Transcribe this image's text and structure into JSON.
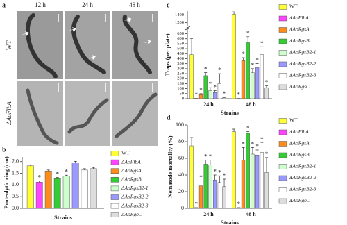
{
  "panel_a": {
    "letter": "a",
    "columns": [
      "12 h",
      "24 h",
      "48 h"
    ],
    "rows": [
      "WT",
      "ΔAoFlbA"
    ]
  },
  "chart_data": [
    {
      "type": "bar",
      "letter": "b",
      "ylabel": "Proteolytic ring (cm)",
      "xlabel": "Strains",
      "categories": [
        null
      ],
      "ylim": [
        0,
        2.2
      ],
      "yticks": [
        {
          "value": 0,
          "label": "0.0"
        },
        {
          "value": 0.5,
          "label": "0.5"
        },
        {
          "value": 1,
          "label": "1.0"
        },
        1.5,
        {
          "value": 2,
          "label": "2.0"
        }
      ],
      "series": [
        {
          "name": "WT",
          "color": "#ffff33",
          "values": [
            1.82
          ],
          "errors": [
            0.04
          ],
          "significance": [
            null
          ]
        },
        {
          "name": "ΔAoFlbA",
          "color": "#ff44ff",
          "values": [
            1.12
          ],
          "errors": [
            0.05
          ],
          "significance": [
            "*"
          ]
        },
        {
          "name": "ΔAoRgsA",
          "color": "#ff8c1a",
          "values": [
            1.6
          ],
          "errors": [
            0.04
          ],
          "significance": [
            null
          ]
        },
        {
          "name": "ΔAoRgsB",
          "color": "#33cc33",
          "values": [
            1.27
          ],
          "errors": [
            0.05
          ],
          "significance": [
            "*"
          ]
        },
        {
          "name": "ΔAoRgsB2-1",
          "color": "#ccffcc",
          "values": [
            1.38
          ],
          "errors": [
            0.04
          ],
          "significance": [
            "*"
          ]
        },
        {
          "name": "ΔAoRgsB2-2",
          "color": "#9999ff",
          "values": [
            1.95
          ],
          "errors": [
            0.06
          ],
          "significance": [
            null
          ]
        },
        {
          "name": "ΔAoRgsB2-3",
          "color": "#ffffff",
          "values": [
            1.64
          ],
          "errors": [
            0.06
          ],
          "significance": [
            null
          ]
        },
        {
          "name": "ΔAoRgsC",
          "color": "#dddddd",
          "values": [
            1.7
          ],
          "errors": [
            0.05
          ],
          "significance": [
            null
          ]
        }
      ]
    },
    {
      "type": "bar",
      "letter": "c",
      "ylabel": "Traps (per plate)",
      "xlabel": "Strains",
      "categories": [
        "24 h",
        "48 h"
      ],
      "ylim": [
        0,
        1500
      ],
      "ybreak": [
        680,
        1100
      ],
      "yticks": [
        0,
        50,
        100,
        150,
        200,
        250,
        300,
        350,
        400,
        450,
        500,
        550,
        600,
        650,
        1200,
        1400
      ],
      "series": [
        {
          "name": "WT",
          "color": "#ffff33",
          "values": [
            440,
            1420
          ],
          "errors": [
            160,
            60
          ],
          "significance": [
            null,
            null
          ]
        },
        {
          "name": "ΔAoFlbA",
          "color": "#ff44ff",
          "values": [
            4,
            4
          ],
          "errors": [
            0,
            0
          ],
          "significance": [
            "*",
            "*"
          ]
        },
        {
          "name": "ΔAoRgsA",
          "color": "#ff8c1a",
          "values": [
            40,
            380
          ],
          "errors": [
            10,
            30
          ],
          "significance": [
            "*",
            "*"
          ]
        },
        {
          "name": "ΔAoRgsB",
          "color": "#33cc33",
          "values": [
            230,
            560
          ],
          "errors": [
            30,
            60
          ],
          "significance": [
            "*",
            "*"
          ]
        },
        {
          "name": "ΔAoRgsB2-1",
          "color": "#ccffcc",
          "values": [
            80,
            260
          ],
          "errors": [
            30,
            40
          ],
          "significance": [
            "*",
            "*"
          ]
        },
        {
          "name": "ΔAoRgsB2-2",
          "color": "#9999ff",
          "values": [
            60,
            310
          ],
          "errors": [
            20,
            40
          ],
          "significance": [
            "*",
            "*"
          ]
        },
        {
          "name": "ΔAoRgsB2-3",
          "color": "#ffffff",
          "values": [
            150,
            440
          ],
          "errors": [
            100,
            80
          ],
          "significance": [
            "*",
            "*"
          ]
        },
        {
          "name": "ΔAoRgsC",
          "color": "#dddddd",
          "values": [
            10,
            110
          ],
          "errors": [
            5,
            20
          ],
          "significance": [
            "*",
            "*"
          ]
        }
      ]
    },
    {
      "type": "bar",
      "letter": "d",
      "ylabel": "Nematode mortality (%)",
      "xlabel": "Strains",
      "categories": [
        "24 h",
        "48 h"
      ],
      "ylim": [
        0,
        100
      ],
      "yticks": [
        0,
        20,
        40,
        60,
        80,
        100
      ],
      "series": [
        {
          "name": "WT",
          "color": "#ffff33",
          "values": [
            75,
            92
          ],
          "errors": [
            10,
            3
          ],
          "significance": [
            null,
            null
          ]
        },
        {
          "name": "ΔAoFlbA",
          "color": "#ff44ff",
          "values": [
            1,
            1
          ],
          "errors": [
            0,
            0
          ],
          "significance": [
            "*",
            "*"
          ]
        },
        {
          "name": "ΔAoRgsA",
          "color": "#ff8c1a",
          "values": [
            27,
            58
          ],
          "errors": [
            6,
            15
          ],
          "significance": [
            "*",
            "*"
          ]
        },
        {
          "name": "ΔAoRgsB",
          "color": "#33cc33",
          "values": [
            53,
            90
          ],
          "errors": [
            5,
            2
          ],
          "significance": [
            "*",
            "*"
          ]
        },
        {
          "name": "ΔAoRgsB2-1",
          "color": "#ccffcc",
          "values": [
            52,
            65
          ],
          "errors": [
            6,
            8
          ],
          "significance": [
            "*",
            "*"
          ]
        },
        {
          "name": "ΔAoRgsB2-2",
          "color": "#9999ff",
          "values": [
            34,
            64
          ],
          "errors": [
            6,
            6
          ],
          "significance": [
            "*",
            "*"
          ]
        },
        {
          "name": "ΔAoRgsB2-3",
          "color": "#ffffff",
          "values": [
            31,
            67
          ],
          "errors": [
            8,
            12
          ],
          "significance": [
            "*",
            "*"
          ]
        },
        {
          "name": "ΔAoRgsC",
          "color": "#dddddd",
          "values": [
            26,
            43
          ],
          "errors": [
            9,
            18
          ],
          "significance": [
            "*",
            "*"
          ]
        }
      ]
    }
  ]
}
